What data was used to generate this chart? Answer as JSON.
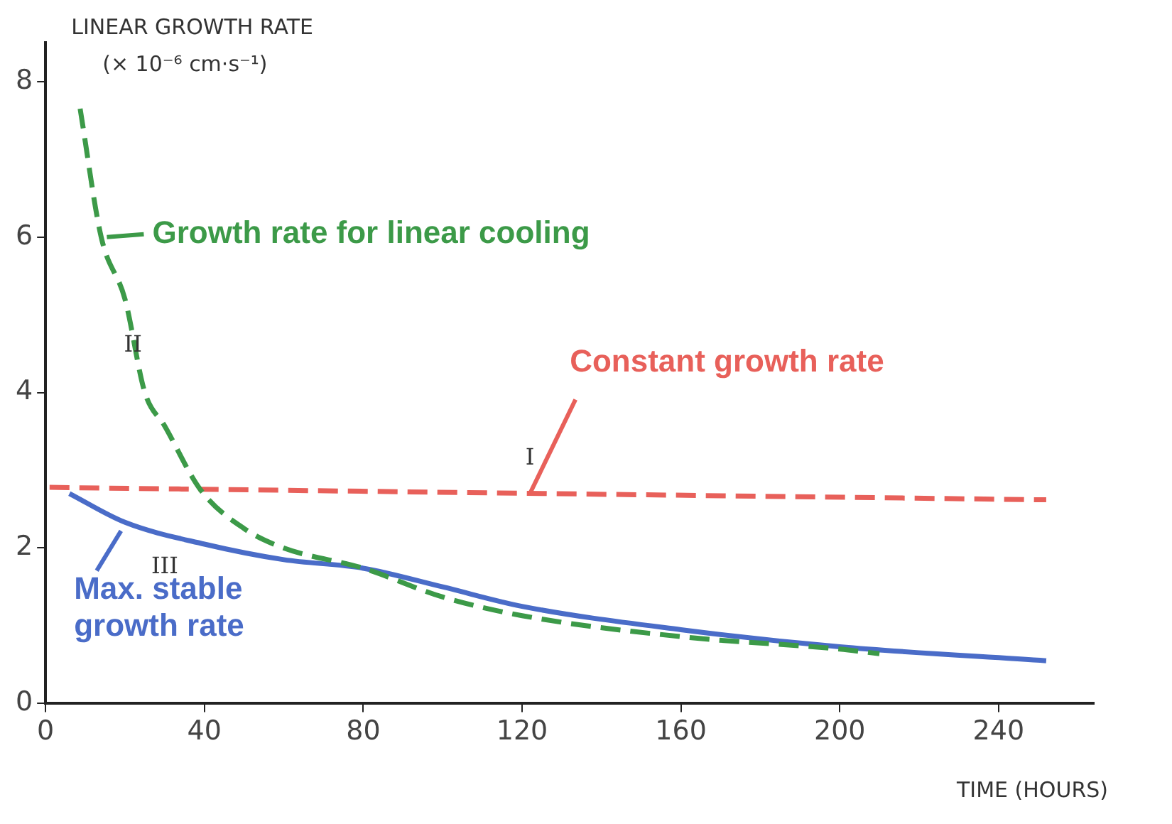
{
  "chart_data": {
    "type": "line",
    "ylabel": "LINEAR GROWTH RATE\n(× 10⁻⁶ cm·s⁻¹)",
    "xlabel": "TIME (HOURS)",
    "xlim": [
      0,
      264
    ],
    "xticks": [
      0,
      40,
      80,
      120,
      160,
      200,
      240
    ],
    "ylim": [
      0,
      8.5
    ],
    "yticks": [
      0,
      2,
      4,
      6,
      8
    ],
    "grid": false,
    "legend": "top left",
    "marker": "none",
    "series": [
      {
        "name": "Growth rate for linear cooling",
        "color": "#3c9a48",
        "line_style": "dashed",
        "x": [
          8.7,
          14,
          20,
          25,
          30,
          39,
          50,
          60,
          80,
          100,
          120,
          160,
          200,
          210
        ],
        "values": [
          7.65,
          6,
          5.2,
          4,
          3.57,
          2.75,
          2.25,
          2.0,
          1.74,
          1.37,
          1.13,
          0.86,
          0.7,
          0.64
        ]
      },
      {
        "name": "Constant growth rate",
        "color": "#e8605a",
        "line_style": "dashed",
        "x": [
          1,
          252
        ],
        "values": [
          2.78,
          2.62
        ]
      },
      {
        "name": "Max. stable growth rate",
        "color": "#4a6cc8",
        "line_style": "solid",
        "x": [
          6,
          20,
          40,
          60,
          80,
          100,
          120,
          160,
          200,
          252
        ],
        "values": [
          2.7,
          2.33,
          2.05,
          1.85,
          1.74,
          1.5,
          1.25,
          0.95,
          0.73,
          0.55
        ]
      }
    ],
    "annotations": [
      "I",
      "II",
      "III"
    ]
  }
}
